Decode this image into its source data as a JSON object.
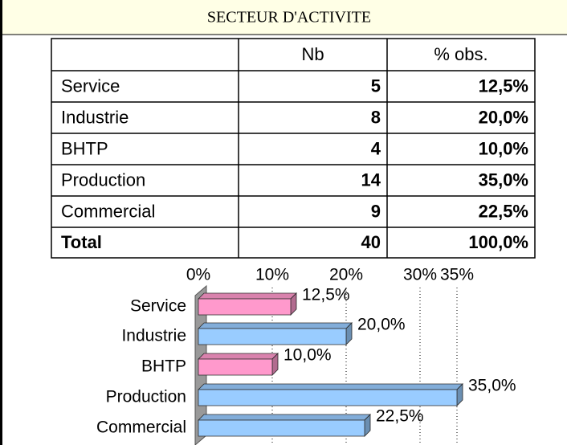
{
  "title": "SECTEUR D'ACTIVITE",
  "table": {
    "columns": [
      "Nb",
      "% obs."
    ],
    "rows": [
      [
        "Service",
        "5",
        "12,5%"
      ],
      [
        "Industrie",
        "8",
        "20,0%"
      ],
      [
        "BHTP",
        "4",
        "10,0%"
      ],
      [
        "Production",
        "14",
        "35,0%"
      ],
      [
        "Commercial",
        "9",
        "22,5%"
      ],
      [
        "Total",
        "40",
        "100,0%"
      ]
    ]
  },
  "chart_data": {
    "type": "bar",
    "orientation": "horizontal",
    "categories": [
      "Service",
      "Industrie",
      "BHTP",
      "Production",
      "Commercial"
    ],
    "values": [
      12.5,
      20.0,
      10.0,
      35.0,
      22.5
    ],
    "value_labels": [
      "12,5%",
      "20,0%",
      "10,0%",
      "35,0%",
      "22,5%"
    ],
    "colors": [
      "#ff99cc",
      "#99ccff",
      "#ff99cc",
      "#99ccff",
      "#99ccff"
    ],
    "xlim": [
      0,
      35
    ],
    "xticks": [
      {
        "value": 0,
        "label": "0%"
      },
      {
        "value": 10,
        "label": "10%"
      },
      {
        "value": 20,
        "label": "20%"
      },
      {
        "value": 30,
        "label": "30%"
      },
      {
        "value": 35,
        "label": "35%"
      }
    ],
    "grid": true
  }
}
